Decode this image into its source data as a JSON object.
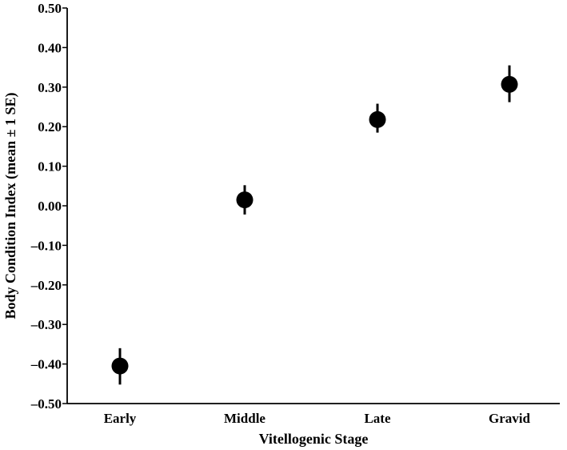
{
  "chart_data": {
    "type": "scatter",
    "title": "",
    "xlabel": "Vitellogenic Stage",
    "ylabel": "Body Condition Index (mean ± 1 SE)",
    "categories": [
      "Early",
      "Middle",
      "Late",
      "Gravid"
    ],
    "series": [
      {
        "values": [
          -0.405,
          0.015,
          0.218,
          0.307
        ],
        "error_low": [
          -0.452,
          -0.022,
          0.185,
          0.262
        ],
        "error_high": [
          -0.36,
          0.052,
          0.258,
          0.355
        ]
      }
    ],
    "ylim": [
      -0.5,
      0.5
    ],
    "yticks": [
      0.5,
      0.4,
      0.3,
      0.2,
      0.1,
      0.0,
      -0.1,
      -0.2,
      -0.3,
      -0.4,
      -0.5
    ],
    "ytick_labels": [
      "0.50",
      "0.40",
      "0.30",
      "0.20",
      "0.10",
      "0.00",
      "–0.10",
      "–0.20",
      "–0.30",
      "–0.40",
      "–0.50"
    ],
    "grid": false,
    "legend": "none",
    "colors": {
      "marker": "#000000",
      "axis": "#000000"
    }
  }
}
